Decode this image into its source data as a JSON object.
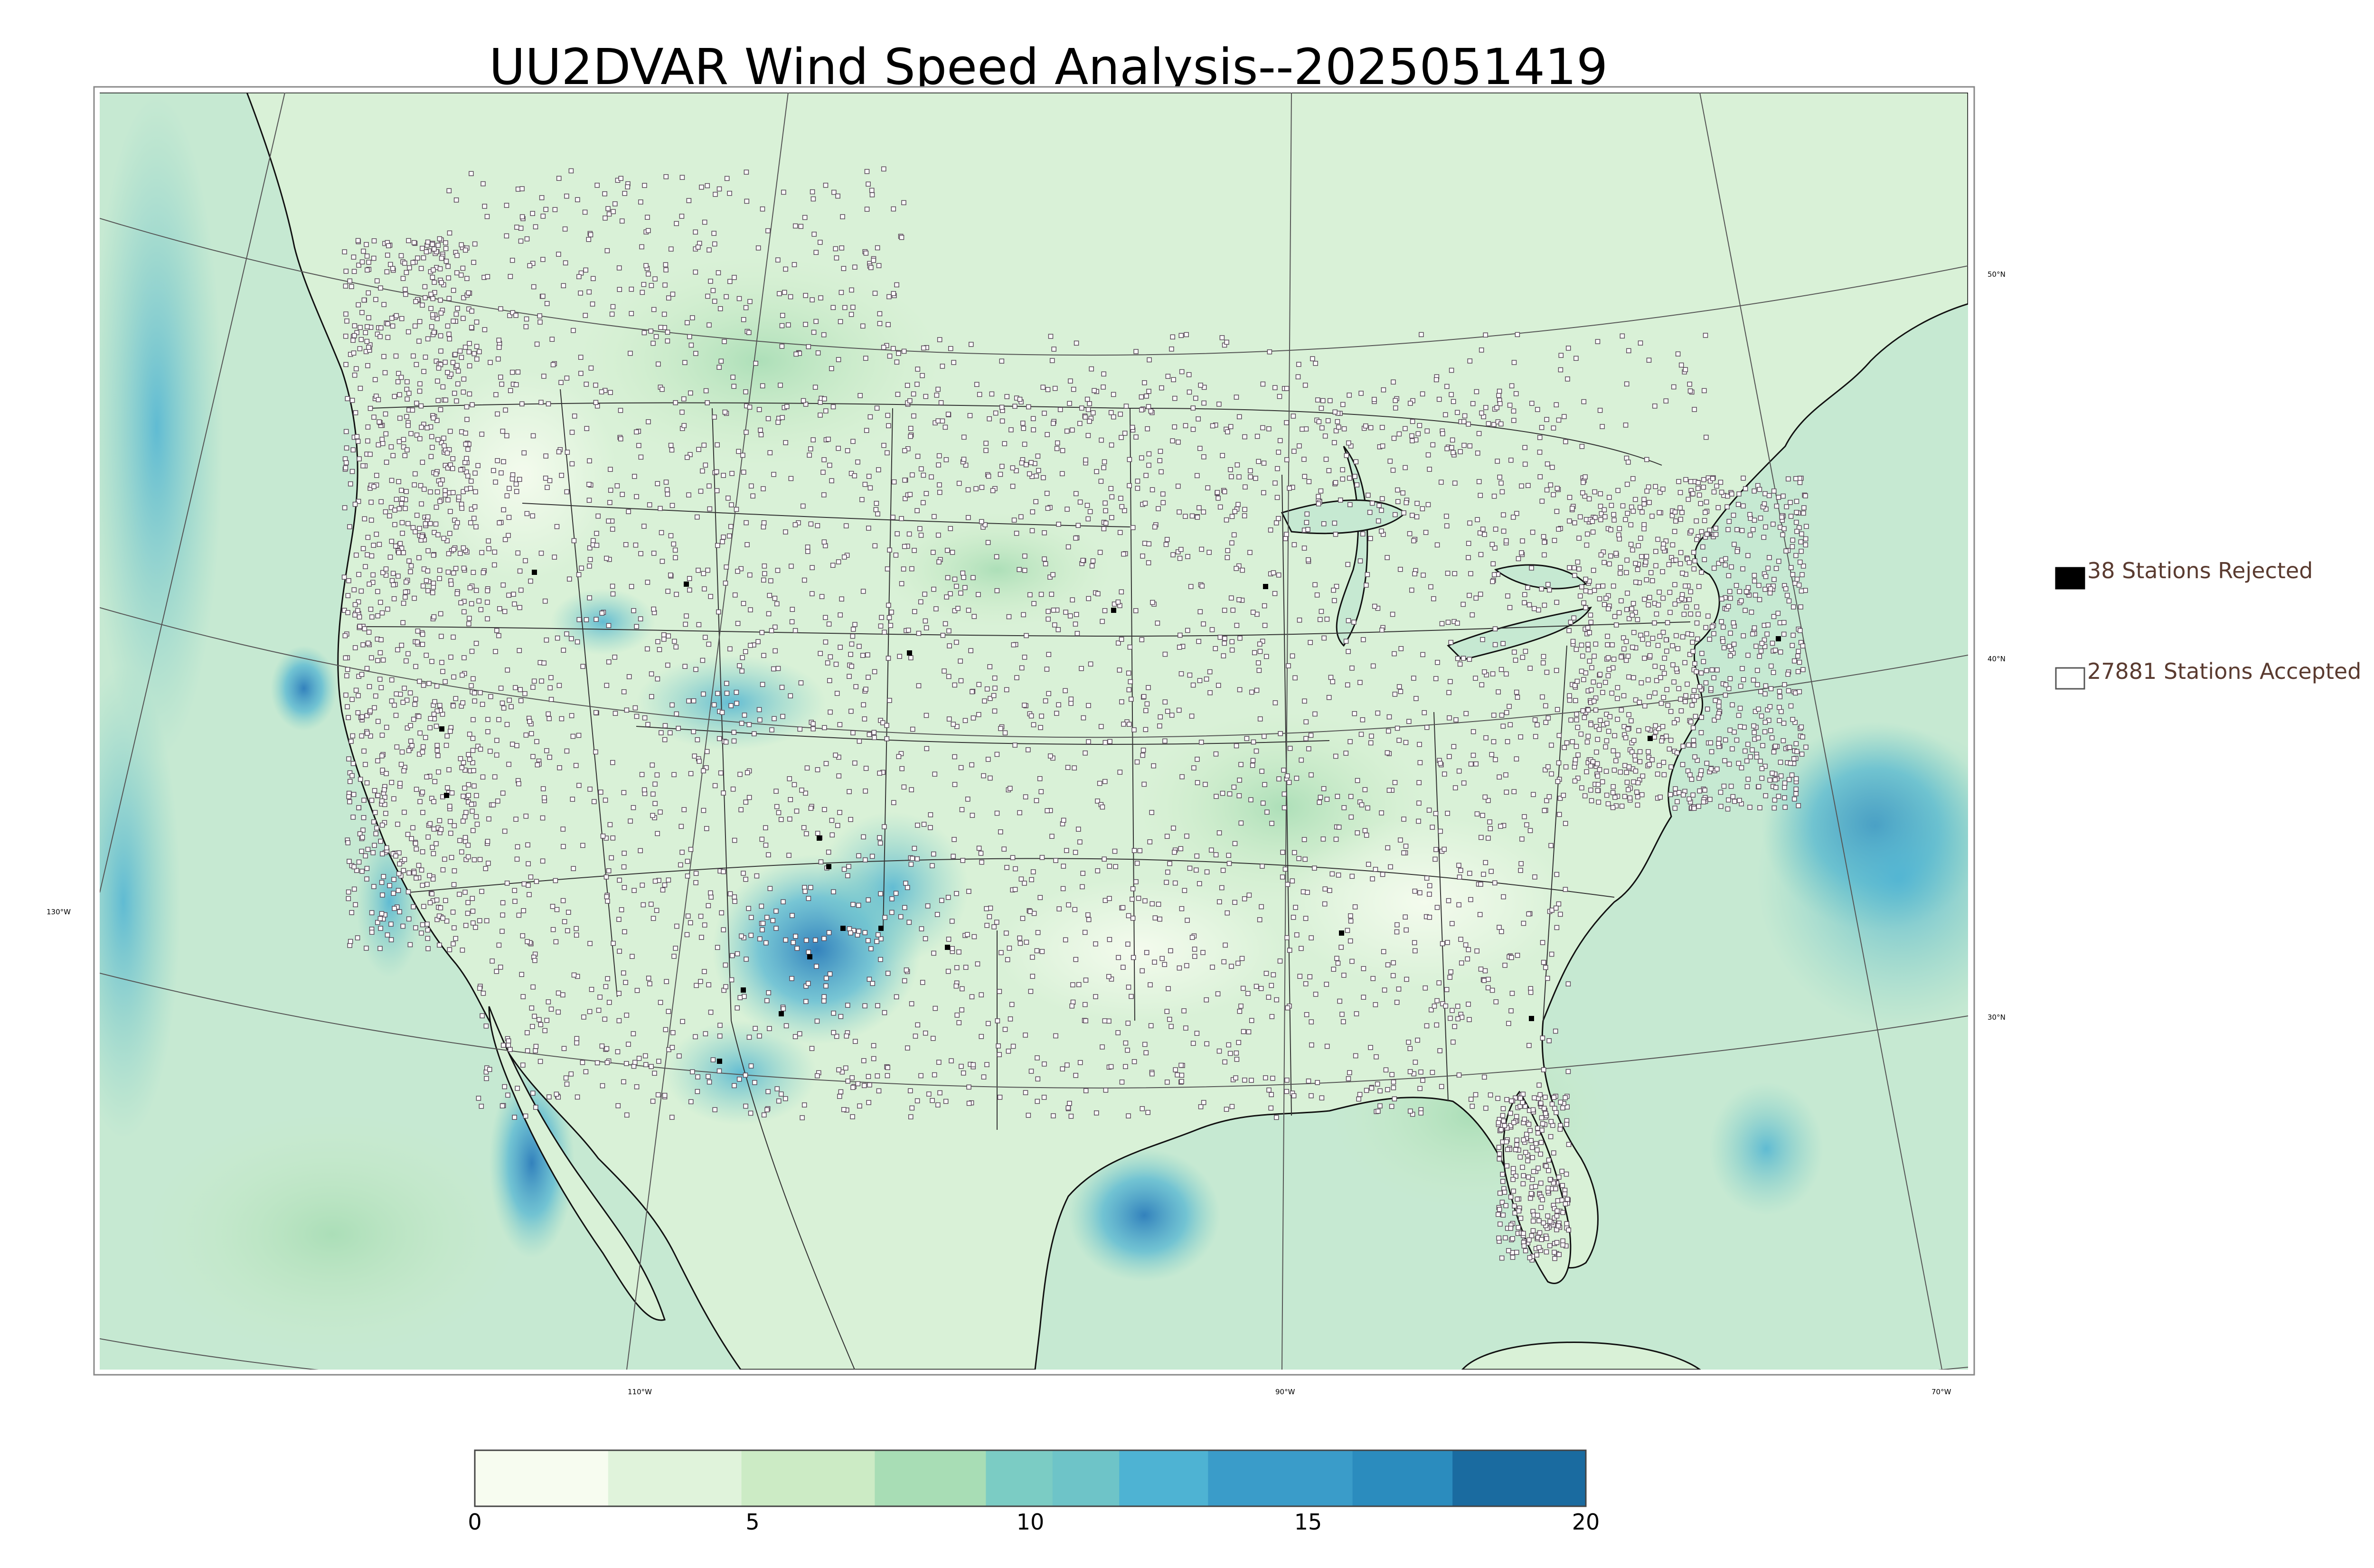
{
  "title": "UU2DVAR Wind Speed Analysis--2025051419",
  "map": {
    "projection": "lambert-conformal",
    "lon_labels": [
      "110°W",
      "90°W",
      "70°W"
    ],
    "lat_labels": [
      "50°N",
      "40°N",
      "30°N"
    ],
    "left_lon_label": "130°W",
    "background_colors": {
      "land": "#d8f0d6",
      "ocean": "#c2e8cf",
      "coast_line": "#000000",
      "state_line": "#333333",
      "grid_line": "#555555"
    }
  },
  "legend": {
    "rejected": {
      "label": "38 Stations Rejected",
      "color": "#000000"
    },
    "accepted": {
      "label": "27881 Stations Accepted",
      "color": "#ffffff"
    }
  },
  "colorbar": {
    "ticks": [
      "0",
      "5",
      "10",
      "15",
      "20"
    ],
    "min": 0,
    "max": 20,
    "colors": [
      "#f7fcf0",
      "#e0f3db",
      "#ccebc5",
      "#a8ddb5",
      "#7bccc4",
      "#6ec4c8",
      "#4eb3d3",
      "#3a9cc9",
      "#2b8cbe",
      "#1a6ba0"
    ]
  }
}
